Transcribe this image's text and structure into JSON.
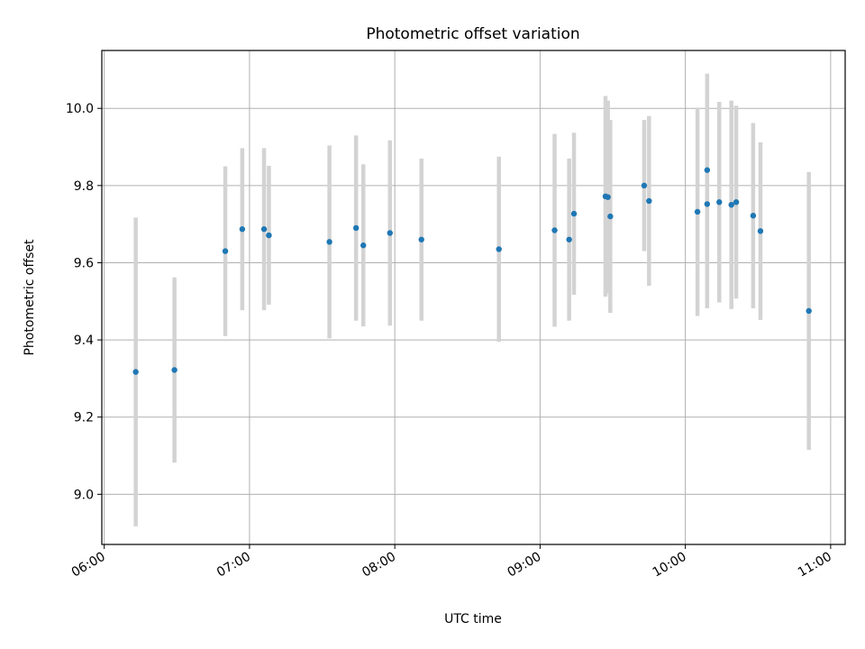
{
  "chart_data": {
    "type": "scatter",
    "title": "Photometric offset variation",
    "xlabel": "UTC time",
    "ylabel": "Photometric offset",
    "xlim": [
      "05:59",
      "11:06"
    ],
    "ylim": [
      8.87,
      10.15
    ],
    "x_ticks": [
      "06:00",
      "07:00",
      "08:00",
      "09:00",
      "10:00",
      "11:00"
    ],
    "y_ticks": [
      "9.0",
      "9.2",
      "9.4",
      "9.6",
      "9.8",
      "10.0"
    ],
    "grid": true,
    "colors": {
      "point": "#1f77b4",
      "errorbar": "#d3d3d3",
      "grid": "#b0b0b0"
    },
    "series": [
      {
        "points": [
          {
            "x": "06:13",
            "y": 9.317,
            "err": 0.4
          },
          {
            "x": "06:29",
            "y": 9.322,
            "err": 0.24
          },
          {
            "x": "06:50",
            "y": 9.63,
            "err": 0.22
          },
          {
            "x": "06:57",
            "y": 9.687,
            "err": 0.21
          },
          {
            "x": "07:06",
            "y": 9.687,
            "err": 0.21
          },
          {
            "x": "07:08",
            "y": 9.671,
            "err": 0.18
          },
          {
            "x": "07:33",
            "y": 9.654,
            "err": 0.25
          },
          {
            "x": "07:44",
            "y": 9.69,
            "err": 0.24
          },
          {
            "x": "07:47",
            "y": 9.645,
            "err": 0.21
          },
          {
            "x": "07:58",
            "y": 9.677,
            "err": 0.24
          },
          {
            "x": "08:11",
            "y": 9.66,
            "err": 0.21
          },
          {
            "x": "08:43",
            "y": 9.635,
            "err": 0.24
          },
          {
            "x": "09:06",
            "y": 9.684,
            "err": 0.25
          },
          {
            "x": "09:12",
            "y": 9.66,
            "err": 0.21
          },
          {
            "x": "09:14",
            "y": 9.727,
            "err": 0.21
          },
          {
            "x": "09:27",
            "y": 9.772,
            "err": 0.26
          },
          {
            "x": "09:28",
            "y": 9.77,
            "err": 0.25
          },
          {
            "x": "09:29",
            "y": 9.72,
            "err": 0.25
          },
          {
            "x": "09:43",
            "y": 9.8,
            "err": 0.17
          },
          {
            "x": "09:45",
            "y": 9.76,
            "err": 0.22
          },
          {
            "x": "10:05",
            "y": 9.732,
            "err": 0.27
          },
          {
            "x": "10:09",
            "y": 9.752,
            "err": 0.27
          },
          {
            "x": "10:09",
            "y": 9.84,
            "err": 0.25
          },
          {
            "x": "10:14",
            "y": 9.757,
            "err": 0.26
          },
          {
            "x": "10:19",
            "y": 9.75,
            "err": 0.27
          },
          {
            "x": "10:21",
            "y": 9.757,
            "err": 0.25
          },
          {
            "x": "10:28",
            "y": 9.722,
            "err": 0.24
          },
          {
            "x": "10:31",
            "y": 9.682,
            "err": 0.23
          },
          {
            "x": "10:51",
            "y": 9.475,
            "err": 0.36
          }
        ]
      }
    ]
  }
}
